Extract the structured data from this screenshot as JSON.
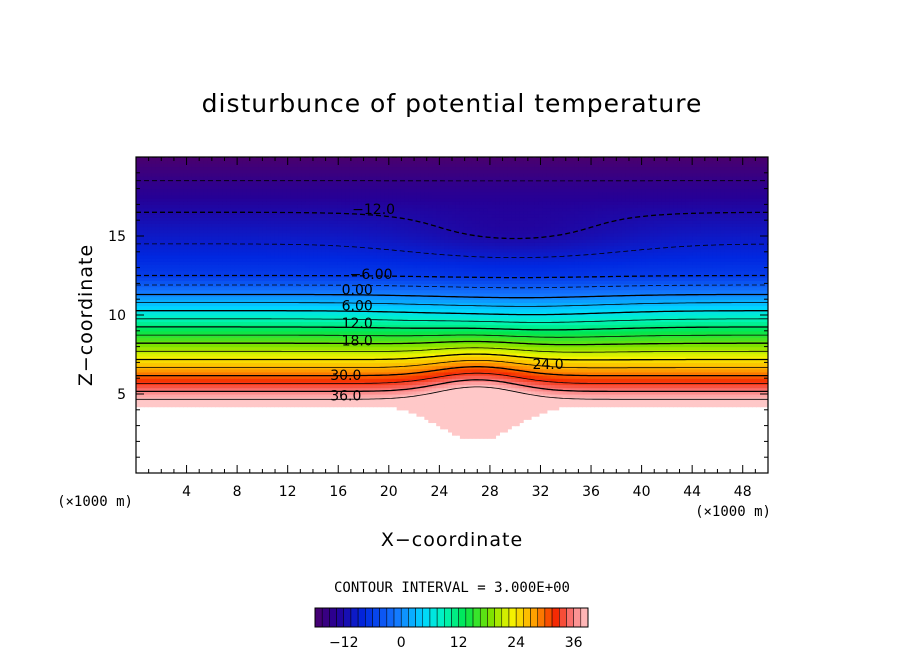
{
  "chart_data": {
    "type": "contour",
    "title": "disturbunce of potential temperature",
    "xlabel": "X−coordinate",
    "ylabel": "Z−coordinate",
    "x_unit_left": "(×1000 m)",
    "x_unit_right": "(×1000 m)",
    "x_ticks": [
      "4",
      "8",
      "12",
      "16",
      "20",
      "24",
      "28",
      "32",
      "36",
      "40",
      "44",
      "48"
    ],
    "y_ticks": [
      "5",
      "10",
      "15"
    ],
    "xlim": [
      0,
      50
    ],
    "ylim": [
      0,
      20
    ],
    "contour_interval_text": "CONTOUR INTERVAL = 3.000E+00",
    "contour_labels": [
      {
        "text": "−12.0",
        "x": 18.8,
        "z": 16.7
      },
      {
        "text": "−6.00",
        "x": 18.6,
        "z": 12.6
      },
      {
        "text": "0.00",
        "x": 17.5,
        "z": 11.6
      },
      {
        "text": "6.00",
        "x": 17.5,
        "z": 10.6
      },
      {
        "text": "12.0",
        "x": 17.5,
        "z": 9.5
      },
      {
        "text": "18.0",
        "x": 17.5,
        "z": 8.4
      },
      {
        "text": "24.0",
        "x": 32.6,
        "z": 6.9
      },
      {
        "text": "30.0",
        "x": 16.6,
        "z": 6.2
      },
      {
        "text": "36.0",
        "x": 16.6,
        "z": 4.9
      }
    ],
    "colorbar": {
      "min": -18,
      "max": 39,
      "tick_labels": [
        "−12",
        "0",
        "12",
        "24",
        "36"
      ]
    }
  }
}
